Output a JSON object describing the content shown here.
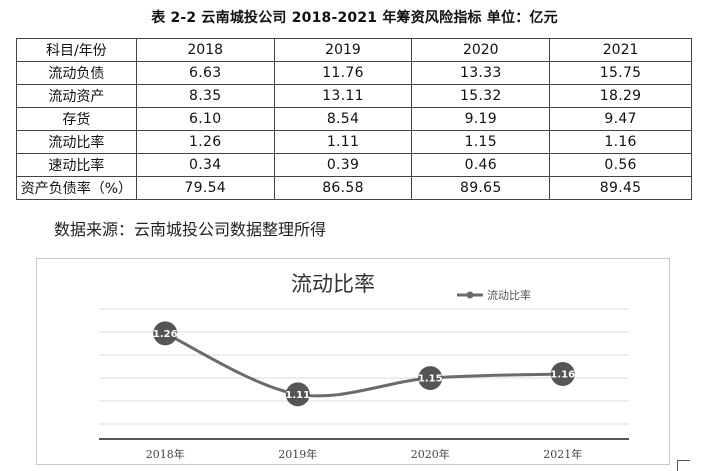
{
  "caption": "表 2-2 云南城投公司 2018-2021 年筹资风险指标 单位：亿元",
  "table": {
    "header": [
      "科目/年份",
      "2018",
      "2019",
      "2020",
      "2021"
    ],
    "rows": [
      {
        "label": "流动负债",
        "values": [
          "6.63",
          "11.76",
          "13.33",
          "15.75"
        ]
      },
      {
        "label": "流动资产",
        "values": [
          "8.35",
          "13.11",
          "15.32",
          "18.29"
        ]
      },
      {
        "label": "存货",
        "values": [
          "6.10",
          "8.54",
          "9.19",
          "9.47"
        ]
      },
      {
        "label": "流动比率",
        "values": [
          "1.26",
          "1.11",
          "1.15",
          "1.16"
        ]
      },
      {
        "label": "速动比率",
        "values": [
          "0.34",
          "0.39",
          "0.46",
          "0.56"
        ]
      },
      {
        "label": "资产负债率（%）",
        "values": [
          "79.54",
          "86.58",
          "89.65",
          "89.45"
        ]
      }
    ]
  },
  "source": "数据来源：云南城投公司数据整理所得",
  "chart_data": {
    "type": "line",
    "title": "流动比率",
    "categories": [
      "2018年",
      "2019年",
      "2020年",
      "2021年"
    ],
    "series": [
      {
        "name": "流动比率",
        "values": [
          1.26,
          1.11,
          1.15,
          1.16
        ]
      }
    ],
    "data_labels": [
      "1.26",
      "1.11",
      "1.15",
      "1.16"
    ],
    "legend": "top-right",
    "grid": true,
    "line_color": "#6b6b6b",
    "marker_color": "#6b6b6b"
  }
}
